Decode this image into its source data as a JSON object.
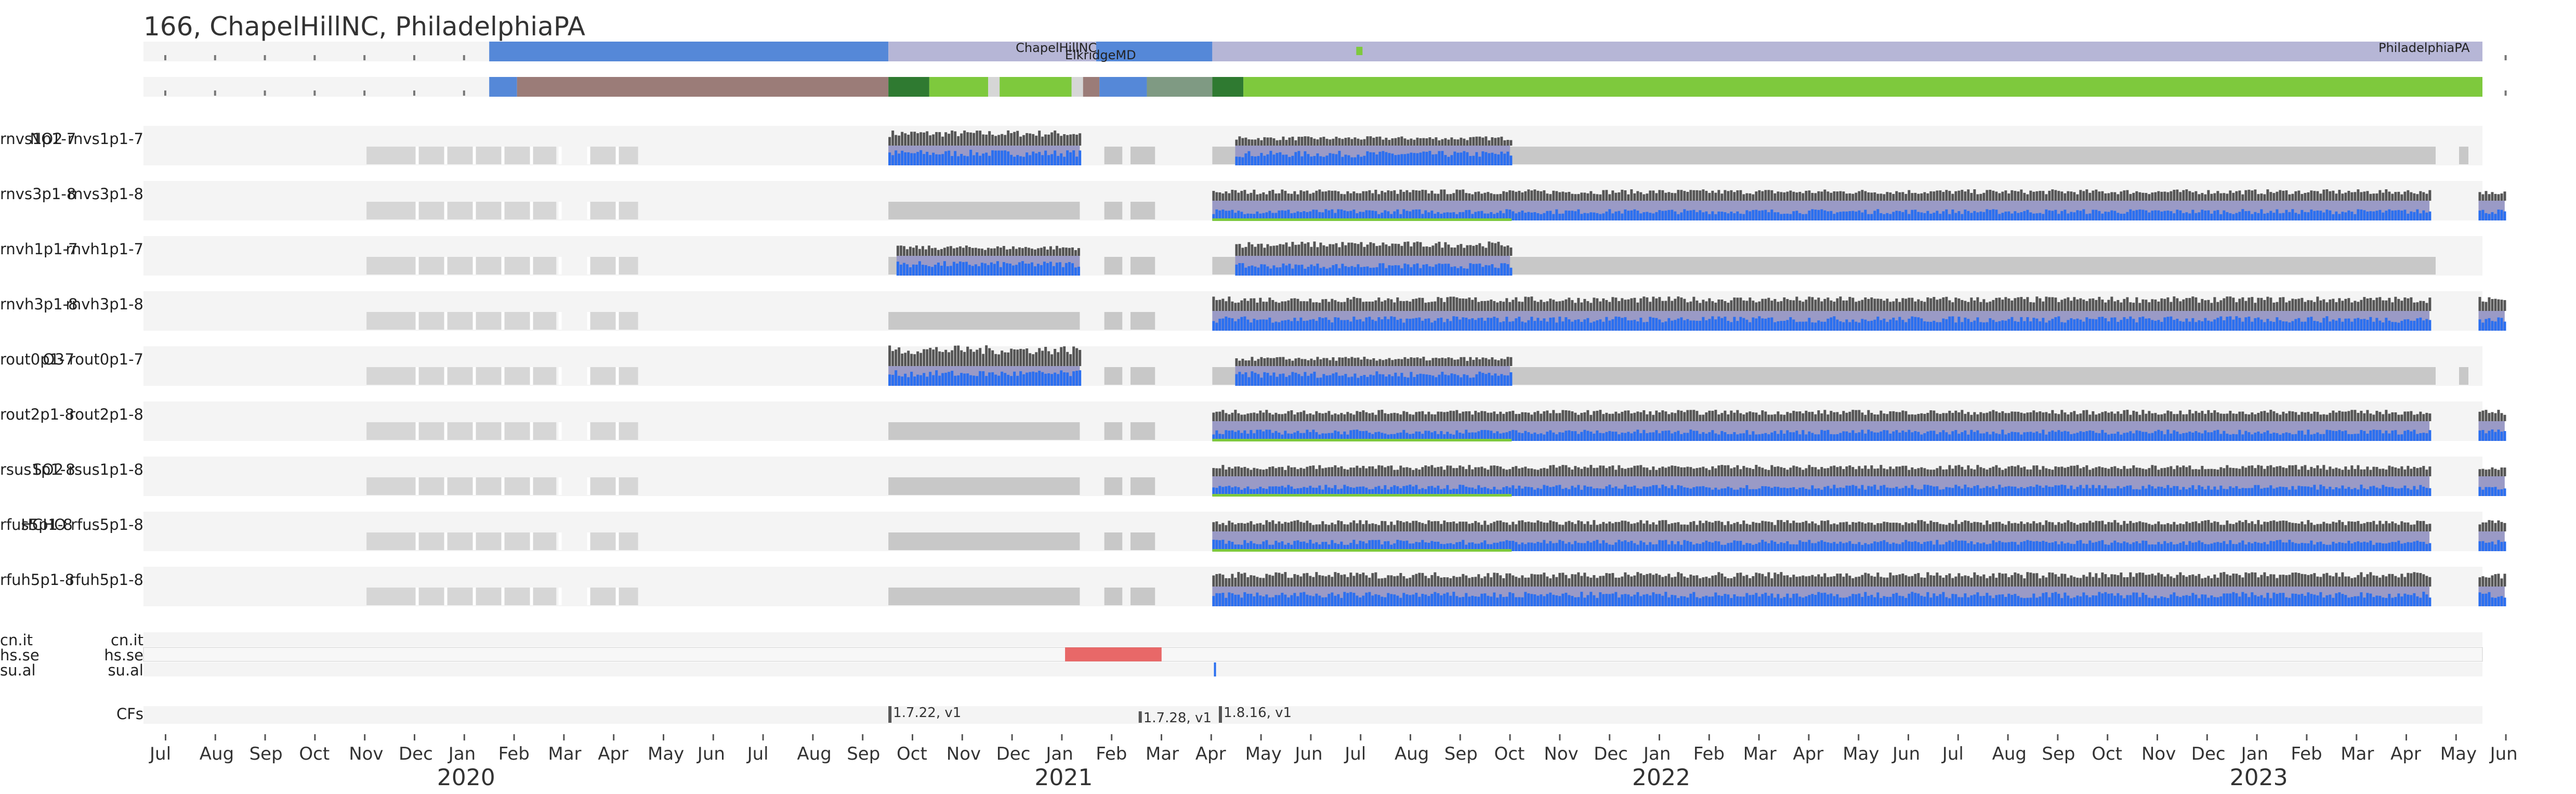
{
  "title": "166, ChapelHillNC, PhiladelphiaPA",
  "colors": {
    "track_bg": "#f4f4f4",
    "gap_light": "#d6d6d6",
    "gap_medium": "#c8c8c8",
    "blue_bar": "#2a6ff0",
    "dark_bar": "#555555",
    "lavender": "#9a9ac6",
    "loc_blue": "#5588d8",
    "loc_lavender": "#b6b6d6",
    "brown": "#9b7c78",
    "dark_green": "#2f7a31",
    "light_green": "#7ec93d",
    "grey_green": "#7f9a83",
    "red": "#e86868",
    "green_line": "#7ec93d"
  },
  "chart_data": {
    "type": "timeline",
    "x_axis": {
      "ticks": [
        "Jul",
        "Aug",
        "Sep",
        "Oct",
        "Nov",
        "Dec",
        "Jan",
        "Feb",
        "Mar",
        "Apr",
        "May",
        "Jun",
        "Jul",
        "Aug",
        "Sep",
        "Oct",
        "Nov",
        "Dec",
        "Jan",
        "Feb",
        "Mar",
        "Apr",
        "May",
        "Jun",
        "Jul",
        "Aug",
        "Sep",
        "Oct",
        "Nov",
        "Dec",
        "Jan",
        "Feb",
        "Mar",
        "Apr",
        "May",
        "Jun",
        "Jul",
        "Aug",
        "Sep",
        "Oct",
        "Nov",
        "Dec",
        "Jan",
        "Feb",
        "Mar",
        "Apr",
        "May",
        "Jun"
      ],
      "start": "2019-07",
      "end": "2023-06",
      "years": [
        "2020",
        "2021",
        "2022",
        "2023"
      ]
    },
    "locations": [
      {
        "name": "ChapelHillNC",
        "start": "2020-09-15",
        "end": "2021-01-20"
      },
      {
        "name": "ElkridgeMD",
        "start": "2021-01-20",
        "end": "2021-03-10"
      },
      {
        "name": "PhiladelphiaPA",
        "start": "2021-04-01",
        "end": "2023-05-31"
      }
    ],
    "rows": [
      {
        "product": "NO2",
        "label": "rnvs1p1-7",
        "mode": "A"
      },
      {
        "product": "",
        "label": "rnvs3p1-8",
        "mode": "B"
      },
      {
        "product": "",
        "label": "rnvh1p1-7",
        "mode": "C"
      },
      {
        "product": "",
        "label": "rnvh3p1-8",
        "mode": "D"
      },
      {
        "product": "O3",
        "label": "rout0p1-7",
        "mode": "E"
      },
      {
        "product": "",
        "label": "rout2p1-8",
        "mode": "B"
      },
      {
        "product": "SO2",
        "label": "rsus1p1-8",
        "mode": "B"
      },
      {
        "product": "HCHO",
        "label": "rfus5p1-8",
        "mode": "B"
      },
      {
        "product": "",
        "label": "rfuh5p1-8",
        "mode": "D"
      }
    ],
    "flags": [
      "cn.it",
      "hs.se",
      "su.al"
    ],
    "cf_label": "CFs",
    "cfs": [
      {
        "label": "1.7.22, v1",
        "date": "2020-09-15"
      },
      {
        "label": "1.7.28, v1",
        "date": "2021-02-15"
      },
      {
        "label": "1.8.16, v1",
        "date": "2021-04-05"
      }
    ]
  }
}
